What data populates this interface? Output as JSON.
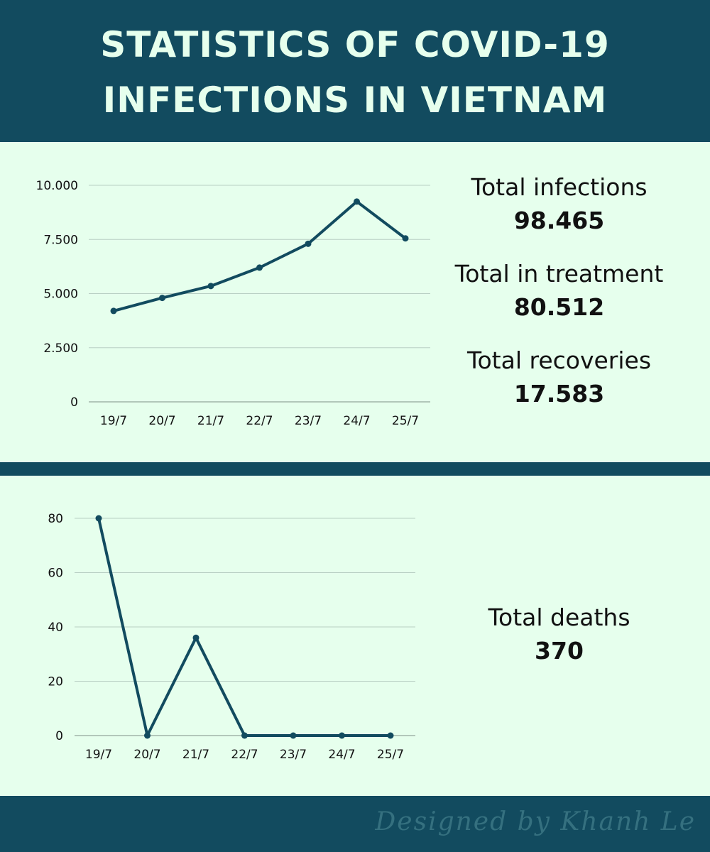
{
  "header": {
    "title_line1": "STATISTICS OF COVID-19",
    "title_line2": "INFECTIONS IN VIETNAM"
  },
  "stats_top": [
    {
      "label": "Total infections",
      "value": "98.465"
    },
    {
      "label": "Total in treatment",
      "value": "80.512"
    },
    {
      "label": "Total recoveries",
      "value": "17.583"
    }
  ],
  "stats_bottom": [
    {
      "label": "Total deaths",
      "value": "370"
    }
  ],
  "footer": {
    "credit": "Designed by Khanh Le"
  },
  "colors": {
    "header_bg": "#124b5f",
    "panel_bg": "#e6ffed",
    "title_text": "#e6ffed",
    "line": "#124b5f",
    "grid": "#b8cfc4",
    "credit_text": "#35707f"
  },
  "chart_data": [
    {
      "type": "line",
      "categories": [
        "19/7",
        "20/7",
        "21/7",
        "22/7",
        "23/7",
        "24/7",
        "25/7"
      ],
      "values": [
        4200,
        4800,
        5350,
        6200,
        7300,
        9250,
        7550
      ],
      "ylim": [
        0,
        10000
      ],
      "yticks": [
        0,
        2500,
        5000,
        7500,
        10000
      ],
      "ytick_labels": [
        "0",
        "2.500",
        "5.000",
        "7.500",
        "10.000"
      ],
      "grid": true
    },
    {
      "type": "line",
      "categories": [
        "19/7",
        "20/7",
        "21/7",
        "22/7",
        "23/7",
        "24/7",
        "25/7"
      ],
      "values": [
        80,
        0,
        36,
        0,
        0,
        0,
        0
      ],
      "ylim": [
        0,
        80
      ],
      "yticks": [
        0,
        20,
        40,
        60,
        80
      ],
      "ytick_labels": [
        "0",
        "20",
        "40",
        "60",
        "80"
      ],
      "grid": true
    }
  ]
}
